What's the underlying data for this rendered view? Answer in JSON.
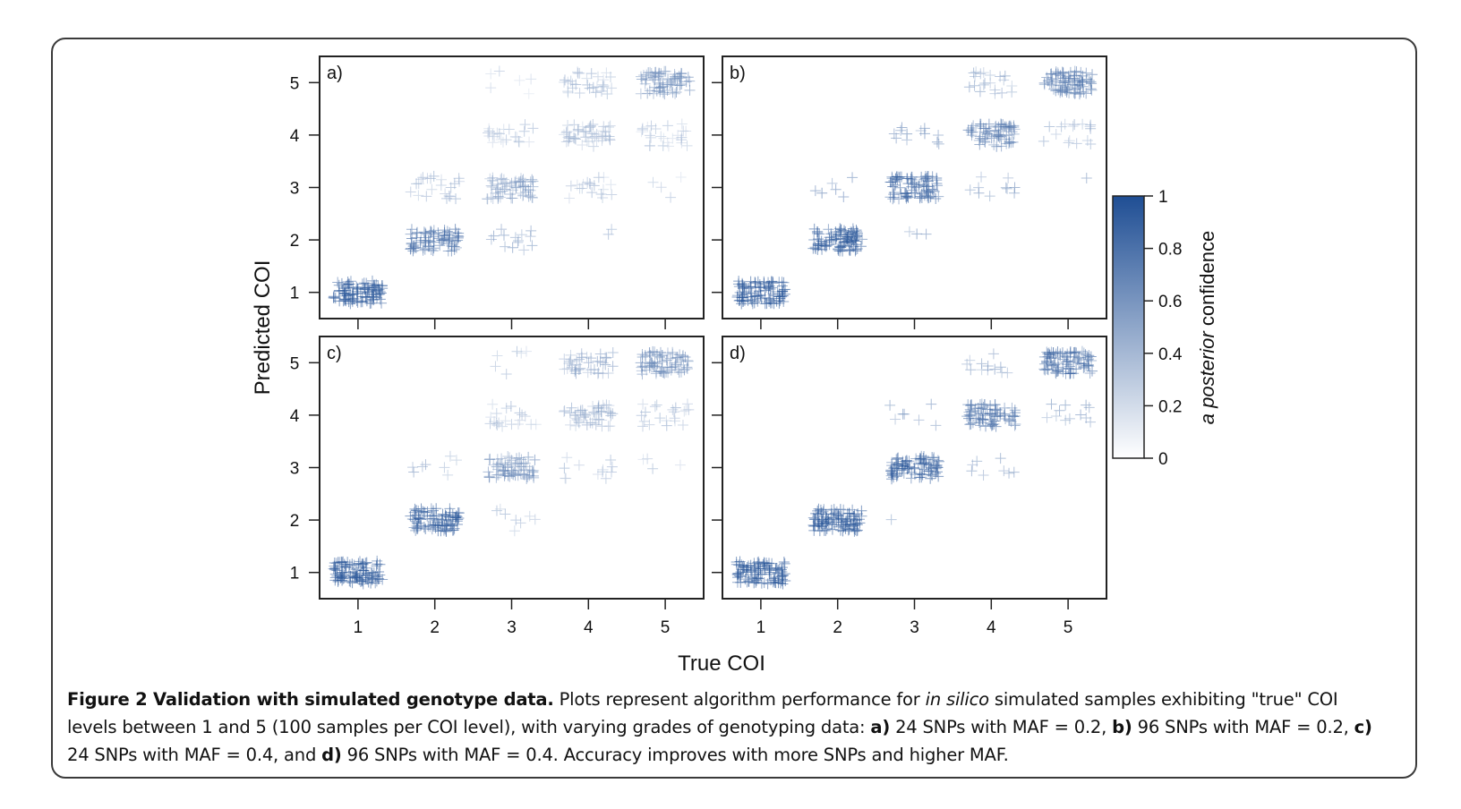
{
  "chart_data": {
    "type": "scatter",
    "xlabel": "True COI",
    "ylabel": "Predicted COI",
    "x_ticks": [
      "1",
      "2",
      "3",
      "4",
      "5"
    ],
    "y_ticks": [
      "1",
      "2",
      "3",
      "4",
      "5"
    ],
    "xlim": [
      0.5,
      5.5
    ],
    "ylim": [
      0.5,
      5.5
    ],
    "marker": "+",
    "samples_per_level": 100,
    "colorbar": {
      "label_italic": "a posterior",
      "label_rest": " confidence",
      "ticks": [
        "0",
        "0.2",
        "0.4",
        "0.6",
        "0.8",
        "1"
      ],
      "range": [
        0,
        1
      ],
      "color_low": "#ffffff",
      "color_high": "#1f4e94"
    },
    "panels": [
      {
        "label": "a)",
        "snps": 24,
        "maf": 0.2,
        "clusters": [
          {
            "true": 1,
            "predicted": 1,
            "count": 100,
            "confidence": 0.93
          },
          {
            "true": 2,
            "predicted": 2,
            "count": 78,
            "confidence": 0.82
          },
          {
            "true": 2,
            "predicted": 3,
            "count": 22,
            "confidence": 0.42
          },
          {
            "true": 3,
            "predicted": 2,
            "count": 14,
            "confidence": 0.55
          },
          {
            "true": 3,
            "predicted": 3,
            "count": 58,
            "confidence": 0.55
          },
          {
            "true": 3,
            "predicted": 4,
            "count": 22,
            "confidence": 0.35
          },
          {
            "true": 3,
            "predicted": 5,
            "count": 6,
            "confidence": 0.3
          },
          {
            "true": 4,
            "predicted": 2,
            "count": 2,
            "confidence": 0.45
          },
          {
            "true": 4,
            "predicted": 3,
            "count": 18,
            "confidence": 0.38
          },
          {
            "true": 4,
            "predicted": 4,
            "count": 50,
            "confidence": 0.4
          },
          {
            "true": 4,
            "predicted": 5,
            "count": 30,
            "confidence": 0.42
          },
          {
            "true": 5,
            "predicted": 3,
            "count": 4,
            "confidence": 0.3
          },
          {
            "true": 5,
            "predicted": 4,
            "count": 26,
            "confidence": 0.35
          },
          {
            "true": 5,
            "predicted": 5,
            "count": 70,
            "confidence": 0.62
          }
        ]
      },
      {
        "label": "b)",
        "snps": 96,
        "maf": 0.2,
        "clusters": [
          {
            "true": 1,
            "predicted": 1,
            "count": 100,
            "confidence": 0.96
          },
          {
            "true": 2,
            "predicted": 2,
            "count": 94,
            "confidence": 0.94
          },
          {
            "true": 2,
            "predicted": 3,
            "count": 6,
            "confidence": 0.7
          },
          {
            "true": 3,
            "predicted": 2,
            "count": 3,
            "confidence": 0.6
          },
          {
            "true": 3,
            "predicted": 3,
            "count": 85,
            "confidence": 0.85
          },
          {
            "true": 3,
            "predicted": 4,
            "count": 12,
            "confidence": 0.65
          },
          {
            "true": 4,
            "predicted": 3,
            "count": 10,
            "confidence": 0.55
          },
          {
            "true": 4,
            "predicted": 4,
            "count": 70,
            "confidence": 0.72
          },
          {
            "true": 4,
            "predicted": 5,
            "count": 20,
            "confidence": 0.5
          },
          {
            "true": 5,
            "predicted": 3,
            "count": 1,
            "confidence": 0.5
          },
          {
            "true": 5,
            "predicted": 4,
            "count": 16,
            "confidence": 0.5
          },
          {
            "true": 5,
            "predicted": 5,
            "count": 83,
            "confidence": 0.75
          }
        ]
      },
      {
        "label": "c)",
        "snps": 24,
        "maf": 0.4,
        "clusters": [
          {
            "true": 1,
            "predicted": 1,
            "count": 100,
            "confidence": 0.95
          },
          {
            "true": 2,
            "predicted": 2,
            "count": 92,
            "confidence": 0.9
          },
          {
            "true": 2,
            "predicted": 3,
            "count": 8,
            "confidence": 0.5
          },
          {
            "true": 3,
            "predicted": 2,
            "count": 8,
            "confidence": 0.4
          },
          {
            "true": 3,
            "predicted": 3,
            "count": 66,
            "confidence": 0.62
          },
          {
            "true": 3,
            "predicted": 4,
            "count": 20,
            "confidence": 0.4
          },
          {
            "true": 3,
            "predicted": 5,
            "count": 6,
            "confidence": 0.35
          },
          {
            "true": 4,
            "predicted": 3,
            "count": 12,
            "confidence": 0.4
          },
          {
            "true": 4,
            "predicted": 4,
            "count": 48,
            "confidence": 0.45
          },
          {
            "true": 4,
            "predicted": 5,
            "count": 40,
            "confidence": 0.48
          },
          {
            "true": 5,
            "predicted": 3,
            "count": 4,
            "confidence": 0.35
          },
          {
            "true": 5,
            "predicted": 4,
            "count": 22,
            "confidence": 0.42
          },
          {
            "true": 5,
            "predicted": 5,
            "count": 74,
            "confidence": 0.65
          }
        ]
      },
      {
        "label": "d)",
        "snps": 96,
        "maf": 0.4,
        "clusters": [
          {
            "true": 1,
            "predicted": 1,
            "count": 100,
            "confidence": 0.97
          },
          {
            "true": 2,
            "predicted": 2,
            "count": 100,
            "confidence": 0.95
          },
          {
            "true": 3,
            "predicted": 2,
            "count": 1,
            "confidence": 0.6
          },
          {
            "true": 3,
            "predicted": 3,
            "count": 92,
            "confidence": 0.88
          },
          {
            "true": 3,
            "predicted": 4,
            "count": 7,
            "confidence": 0.6
          },
          {
            "true": 4,
            "predicted": 3,
            "count": 8,
            "confidence": 0.55
          },
          {
            "true": 4,
            "predicted": 4,
            "count": 80,
            "confidence": 0.78
          },
          {
            "true": 4,
            "predicted": 5,
            "count": 12,
            "confidence": 0.55
          },
          {
            "true": 5,
            "predicted": 4,
            "count": 12,
            "confidence": 0.55
          },
          {
            "true": 5,
            "predicted": 5,
            "count": 88,
            "confidence": 0.8
          }
        ]
      }
    ]
  },
  "caption": {
    "fig_label": "Figure 2 Validation with simulated genotype data.",
    "s1": " Plots represent algorithm performance for ",
    "s1_italic": "in silico",
    "s2": " simulated samples exhibiting \"true\" COI levels between 1 and 5 (100 samples per COI level), with varying grades of genotyping data: ",
    "a_label": "a)",
    "a_text": " 24 SNPs with MAF = 0.2, ",
    "b_label": "b)",
    "b_text": " 96 SNPs with MAF = 0.2, ",
    "c_label": "c)",
    "c_text": " 24 SNPs with MAF = 0.4, and ",
    "d_label": "d)",
    "d_text": " 96 SNPs with MAF = 0.4. Accuracy improves with more SNPs and higher MAF."
  }
}
